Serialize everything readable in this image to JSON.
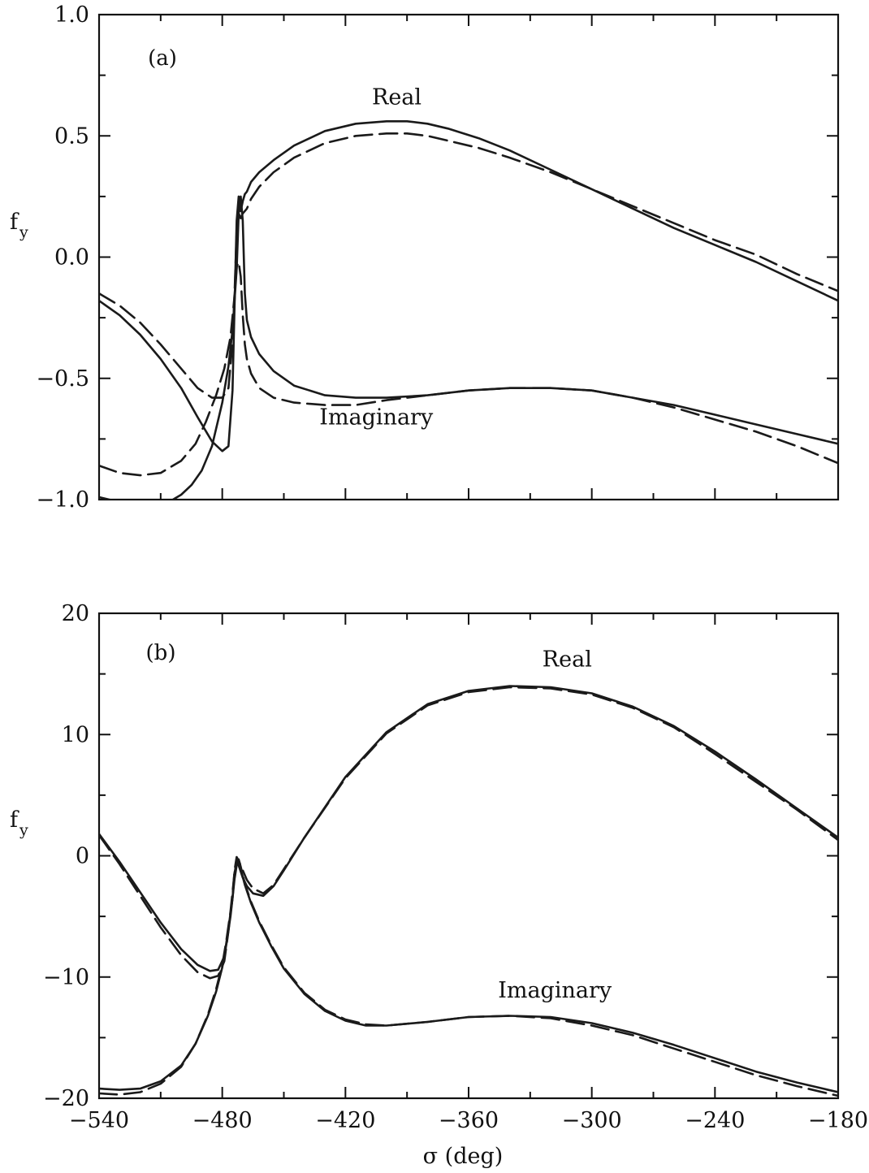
{
  "chart_data": [
    {
      "type": "line",
      "panel_label": "(a)",
      "ylabel": "f",
      "ylabel_sub": "y",
      "xlim": [
        -540,
        -180
      ],
      "ylim": [
        -1.0,
        1.0
      ],
      "xticks_labeled": false,
      "yticks": [
        -1.0,
        -0.5,
        0.0,
        0.5,
        1.0
      ],
      "ytick_labels": [
        "−1.0",
        "−0.5",
        "0.0",
        "0.5",
        "1.0"
      ],
      "annotations": [
        {
          "text": "Real",
          "x": -395,
          "y": 0.63
        },
        {
          "text": "Imaginary",
          "x": -405,
          "y": -0.69
        }
      ],
      "series": [
        {
          "style": "solid",
          "x": [
            -540,
            -530,
            -520,
            -510,
            -500,
            -492,
            -485,
            -480,
            -477,
            -475,
            -474,
            -473,
            -472,
            -471,
            -470,
            -469,
            -468,
            -466,
            -462,
            -455,
            -445,
            -430,
            -415,
            -400,
            -390,
            -380,
            -370,
            -355,
            -340,
            -320,
            -300,
            -280,
            -260,
            -240,
            -220,
            -200,
            -180
          ],
          "y": [
            -0.18,
            -0.24,
            -0.32,
            -0.42,
            -0.54,
            -0.66,
            -0.76,
            -0.8,
            -0.78,
            -0.55,
            -0.2,
            0.15,
            0.25,
            0.19,
            0.23,
            0.26,
            0.27,
            0.31,
            0.35,
            0.4,
            0.46,
            0.52,
            0.55,
            0.56,
            0.56,
            0.55,
            0.53,
            0.49,
            0.44,
            0.36,
            0.28,
            0.2,
            0.12,
            0.05,
            -0.02,
            -0.1,
            -0.18
          ]
        },
        {
          "style": "dashed",
          "x": [
            -540,
            -530,
            -520,
            -510,
            -500,
            -492,
            -485,
            -480,
            -477,
            -475,
            -474,
            -473,
            -472,
            -471,
            -470,
            -469,
            -468,
            -466,
            -462,
            -455,
            -445,
            -430,
            -415,
            -400,
            -390,
            -380,
            -370,
            -355,
            -340,
            -320,
            -300,
            -280,
            -260,
            -240,
            -220,
            -200,
            -180
          ],
          "y": [
            -0.15,
            -0.2,
            -0.27,
            -0.36,
            -0.46,
            -0.54,
            -0.58,
            -0.58,
            -0.54,
            -0.35,
            -0.15,
            0.1,
            0.18,
            0.16,
            0.18,
            0.19,
            0.2,
            0.24,
            0.29,
            0.35,
            0.41,
            0.47,
            0.5,
            0.51,
            0.51,
            0.5,
            0.48,
            0.45,
            0.41,
            0.35,
            0.28,
            0.21,
            0.14,
            0.07,
            0.01,
            -0.07,
            -0.14
          ]
        },
        {
          "style": "solid",
          "x": [
            -540,
            -535,
            -530,
            -520,
            -510,
            -500,
            -495,
            -490,
            -485,
            -480,
            -477,
            -475,
            -473,
            -472,
            -471,
            -470,
            -469,
            -468,
            -466,
            -462,
            -455,
            -445,
            -430,
            -415,
            -400,
            -380,
            -360,
            -340,
            -320,
            -300,
            -280,
            -260,
            -240,
            -220,
            -200,
            -180
          ],
          "y": [
            -0.99,
            -1.0,
            -1.01,
            -1.02,
            -1.03,
            -0.98,
            -0.94,
            -0.88,
            -0.78,
            -0.6,
            -0.45,
            -0.3,
            -0.05,
            0.18,
            0.25,
            0.15,
            -0.15,
            -0.26,
            -0.33,
            -0.4,
            -0.47,
            -0.53,
            -0.57,
            -0.58,
            -0.58,
            -0.57,
            -0.55,
            -0.54,
            -0.54,
            -0.55,
            -0.58,
            -0.61,
            -0.65,
            -0.69,
            -0.73,
            -0.77
          ]
        },
        {
          "style": "dashed",
          "x": [
            -540,
            -530,
            -520,
            -510,
            -500,
            -493,
            -488,
            -483,
            -479,
            -476,
            -474,
            -473,
            -472,
            -471,
            -470,
            -469,
            -468,
            -466,
            -462,
            -455,
            -445,
            -430,
            -415,
            -400,
            -380,
            -360,
            -340,
            -320,
            -300,
            -280,
            -260,
            -240,
            -220,
            -200,
            -180
          ],
          "y": [
            -0.86,
            -0.89,
            -0.9,
            -0.89,
            -0.84,
            -0.77,
            -0.68,
            -0.57,
            -0.46,
            -0.33,
            -0.16,
            -0.04,
            -0.02,
            -0.08,
            -0.24,
            -0.36,
            -0.42,
            -0.48,
            -0.54,
            -0.58,
            -0.6,
            -0.61,
            -0.61,
            -0.59,
            -0.57,
            -0.55,
            -0.54,
            -0.54,
            -0.55,
            -0.58,
            -0.62,
            -0.67,
            -0.72,
            -0.78,
            -0.85
          ]
        }
      ]
    },
    {
      "type": "line",
      "panel_label": "(b)",
      "ylabel": "f",
      "ylabel_sub": "y",
      "xlabel": "σ (deg)",
      "xlim": [
        -540,
        -180
      ],
      "ylim": [
        -20,
        20
      ],
      "xticks": [
        -540,
        -480,
        -420,
        -360,
        -300,
        -240,
        -180
      ],
      "xtick_labels": [
        "−540",
        "−480",
        "−420",
        "−360",
        "−300",
        "−240",
        "−180"
      ],
      "yticks": [
        -20,
        -10,
        0,
        10,
        20
      ],
      "ytick_labels": [
        "−20",
        "−10",
        "0",
        "10",
        "20"
      ],
      "annotations": [
        {
          "text": "Real",
          "x": -312,
          "y": 15.6
        },
        {
          "text": "Imaginary",
          "x": -318,
          "y": -11.7
        }
      ],
      "series": [
        {
          "style": "solid",
          "x": [
            -540,
            -530,
            -520,
            -510,
            -500,
            -492,
            -486,
            -482,
            -479,
            -477,
            -475,
            -474,
            -473,
            -472,
            -470,
            -468,
            -465,
            -460,
            -455,
            -450,
            -440,
            -420,
            -400,
            -380,
            -360,
            -340,
            -320,
            -300,
            -280,
            -260,
            -240,
            -220,
            -200,
            -180
          ],
          "y": [
            1.8,
            -0.5,
            -3.0,
            -5.5,
            -7.7,
            -9.0,
            -9.5,
            -9.4,
            -8.3,
            -6.0,
            -3.5,
            -1.5,
            -0.3,
            -0.8,
            -1.8,
            -2.5,
            -3.1,
            -3.3,
            -2.5,
            -1.2,
            1.5,
            6.5,
            10.2,
            12.5,
            13.6,
            14.0,
            13.9,
            13.4,
            12.3,
            10.7,
            8.6,
            6.3,
            3.9,
            1.5
          ]
        },
        {
          "style": "dashed",
          "x": [
            -540,
            -530,
            -520,
            -510,
            -500,
            -492,
            -486,
            -482,
            -479,
            -477,
            -475,
            -474,
            -473,
            -472,
            -470,
            -468,
            -465,
            -460,
            -455,
            -450,
            -440,
            -420,
            -400,
            -380,
            -360,
            -340,
            -320,
            -300,
            -280,
            -260,
            -240,
            -220,
            -200,
            -180
          ],
          "y": [
            1.7,
            -0.7,
            -3.3,
            -5.9,
            -8.2,
            -9.6,
            -10.1,
            -9.9,
            -8.7,
            -6.2,
            -3.4,
            -1.2,
            -0.1,
            -0.4,
            -1.2,
            -2.0,
            -2.7,
            -3.1,
            -2.4,
            -1.1,
            1.5,
            6.4,
            10.1,
            12.4,
            13.5,
            13.9,
            13.8,
            13.3,
            12.2,
            10.6,
            8.4,
            6.1,
            3.8,
            1.3
          ]
        },
        {
          "style": "solid",
          "x": [
            -540,
            -530,
            -520,
            -510,
            -500,
            -493,
            -487,
            -483,
            -480,
            -478,
            -476,
            -475,
            -474,
            -473,
            -472,
            -471,
            -469,
            -466,
            -462,
            -456,
            -450,
            -440,
            -430,
            -420,
            -410,
            -400,
            -380,
            -360,
            -340,
            -320,
            -300,
            -280,
            -260,
            -240,
            -220,
            -200,
            -180
          ],
          "y": [
            -19.2,
            -19.3,
            -19.2,
            -18.6,
            -17.3,
            -15.5,
            -13.2,
            -11.2,
            -9.2,
            -7.3,
            -5.0,
            -3.5,
            -1.9,
            -0.8,
            -0.6,
            -1.1,
            -2.4,
            -3.9,
            -5.5,
            -7.5,
            -9.3,
            -11.4,
            -12.8,
            -13.6,
            -14.0,
            -14.0,
            -13.7,
            -13.3,
            -13.2,
            -13.3,
            -13.8,
            -14.6,
            -15.6,
            -16.7,
            -17.8,
            -18.7,
            -19.5
          ]
        },
        {
          "style": "dashed",
          "x": [
            -540,
            -530,
            -520,
            -510,
            -500,
            -493,
            -487,
            -483,
            -480,
            -478,
            -476,
            -475,
            -474,
            -473,
            -472,
            -471,
            -469,
            -466,
            -462,
            -456,
            -450,
            -440,
            -430,
            -420,
            -410,
            -400,
            -380,
            -360,
            -340,
            -320,
            -300,
            -280,
            -260,
            -240,
            -220,
            -200,
            -180
          ],
          "y": [
            -19.6,
            -19.7,
            -19.5,
            -18.8,
            -17.4,
            -15.5,
            -13.1,
            -11.0,
            -9.0,
            -7.0,
            -4.6,
            -3.0,
            -1.4,
            -0.4,
            -0.3,
            -0.9,
            -2.3,
            -3.8,
            -5.4,
            -7.4,
            -9.2,
            -11.3,
            -12.7,
            -13.5,
            -13.9,
            -14.0,
            -13.7,
            -13.3,
            -13.2,
            -13.4,
            -14.0,
            -14.8,
            -15.9,
            -17.0,
            -18.1,
            -19.0,
            -19.8
          ]
        }
      ]
    }
  ]
}
